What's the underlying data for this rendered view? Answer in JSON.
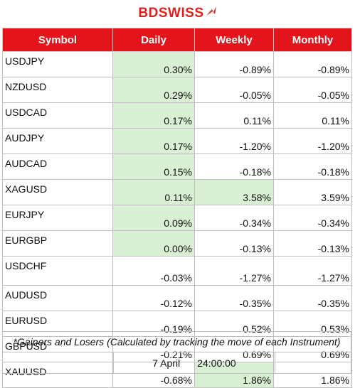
{
  "brand": {
    "name_bd": "BD",
    "name_swiss": "SWISS",
    "mark_icon": "bdswiss-arrow-mark"
  },
  "colors": {
    "header_bg": "#e3141b",
    "highlight": "#daf0d4",
    "brand_red": "#e0201b"
  },
  "table": {
    "headers": [
      "Symbol",
      "Daily",
      "Weekly",
      "Monthly"
    ],
    "rows": [
      {
        "symbol": "USDJPY",
        "daily": "0.30%",
        "weekly": "-0.89%",
        "monthly": "-0.89%"
      },
      {
        "symbol": "NZDUSD",
        "daily": "0.29%",
        "weekly": "-0.05%",
        "monthly": "-0.05%"
      },
      {
        "symbol": "USDCAD",
        "daily": "0.17%",
        "weekly": "0.11%",
        "monthly": "0.11%"
      },
      {
        "symbol": "AUDJPY",
        "daily": "0.17%",
        "weekly": "-1.20%",
        "monthly": "-1.20%"
      },
      {
        "symbol": "AUDCAD",
        "daily": "0.15%",
        "weekly": "-0.18%",
        "monthly": "-0.18%"
      },
      {
        "symbol": "XAGUSD",
        "daily": "0.11%",
        "weekly": "3.58%",
        "monthly": "3.59%"
      },
      {
        "symbol": "EURJPY",
        "daily": "0.09%",
        "weekly": "-0.34%",
        "monthly": "-0.34%"
      },
      {
        "symbol": "EURGBP",
        "daily": "0.00%",
        "weekly": "-0.13%",
        "monthly": "-0.13%"
      },
      {
        "symbol": "USDCHF",
        "daily": "-0.03%",
        "weekly": "-1.27%",
        "monthly": "-1.27%"
      },
      {
        "symbol": "AUDUSD",
        "daily": "-0.12%",
        "weekly": "-0.35%",
        "monthly": "-0.35%"
      },
      {
        "symbol": "EURUSD",
        "daily": "-0.19%",
        "weekly": "0.52%",
        "monthly": "0.53%"
      },
      {
        "symbol": "GBPUSD",
        "daily": "-0.21%",
        "weekly": "0.69%",
        "monthly": "0.69%"
      },
      {
        "symbol": "XAUUSD",
        "daily": "-0.68%",
        "weekly": "1.86%",
        "monthly": "1.86%"
      }
    ]
  },
  "footnote": "*Gainers and Losers (Calculated by tracking the move of each Instrument)",
  "date": {
    "day": "7 April",
    "time": "24:00:00"
  }
}
